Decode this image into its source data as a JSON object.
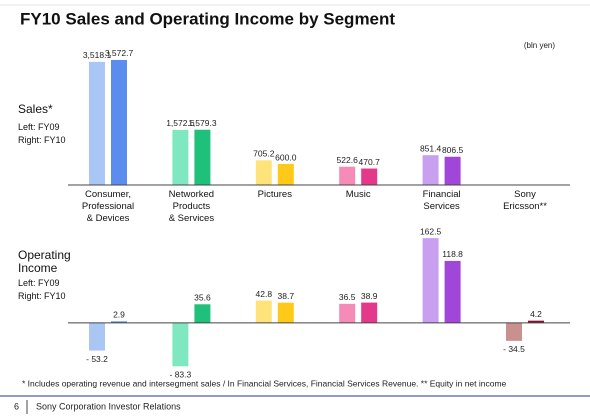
{
  "title": "FY10 Sales and Operating Income by Segment",
  "unit": "(bln yen)",
  "chart_data": [
    {
      "type": "bar",
      "title": "Sales*",
      "categories": [
        "Consumer,\nProfessional\n& Devices",
        "Networked\nProducts\n& Services",
        "Pictures",
        "Music",
        "Financial\nServices",
        "Sony\nEricsson**"
      ],
      "series": [
        {
          "name": "Left:  FY09",
          "colors": [
            "#a9c6f5",
            "#7fe8c0",
            "#fde37a",
            "#f58cb7",
            "#c9a0f0",
            "#c8908f"
          ],
          "values": [
            3518.1,
            1572.6,
            705.2,
            522.6,
            851.4,
            null
          ],
          "value_labels": [
            "3,518.1",
            "1,572.6",
            "705.2",
            "522.6",
            "851.4",
            null
          ]
        },
        {
          "name": "Right: FY10",
          "colors": [
            "#5b8def",
            "#1fc07a",
            "#ffc91a",
            "#e4388a",
            "#a046d8",
            "#8a1030"
          ],
          "values": [
            3572.7,
            1579.3,
            600.0,
            470.7,
            806.5,
            null
          ],
          "value_labels": [
            "3,572.7",
            "1,579.3",
            "600.0",
            "470.7",
            "806.5",
            null
          ]
        }
      ],
      "ylim": [
        0,
        3600
      ]
    },
    {
      "type": "bar",
      "title": "Operating\nIncome",
      "series": [
        {
          "name": "Left:  FY09",
          "colors": [
            "#a9c6f5",
            "#7fe8c0",
            "#fde37a",
            "#f58cb7",
            "#c9a0f0",
            "#c8908f"
          ],
          "values": [
            -53.2,
            -83.3,
            42.8,
            36.5,
            162.5,
            -34.5
          ],
          "value_labels": [
            "- 53.2",
            "- 83.3",
            "42.8",
            "36.5",
            "162.5",
            "- 34.5"
          ]
        },
        {
          "name": "Right: FY10",
          "colors": [
            "#5b8def",
            "#1fc07a",
            "#ffc91a",
            "#e4388a",
            "#a046d8",
            "#8a1030"
          ],
          "values": [
            2.9,
            35.6,
            38.7,
            38.9,
            118.8,
            4.2
          ]
        }
      ],
      "ylim": [
        -100,
        180
      ]
    }
  ],
  "footnote": "* Includes operating revenue and intersegment sales / In Financial Services, Financial Services Revenue.  ** Equity in net income",
  "footer": {
    "page": "6",
    "text": "Sony Corporation Investor Relations"
  }
}
